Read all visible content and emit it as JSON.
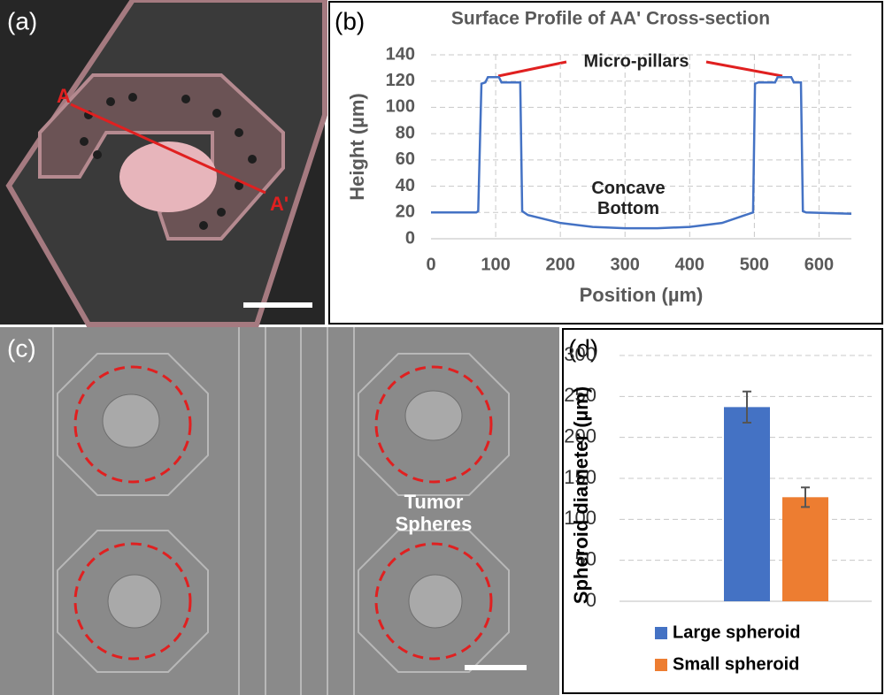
{
  "panels": {
    "a": {
      "label": "(a)",
      "point_a": "A",
      "point_a2": "A'"
    },
    "b": {
      "label": "(b)"
    },
    "c": {
      "label": "(c)",
      "annotation": "Tumor Spheres"
    },
    "d": {
      "label": "(d)"
    }
  },
  "chart_data": [
    {
      "type": "line",
      "title": "Surface Profile of AA' Cross-section",
      "x_label": "Position (µm)",
      "y_label": "Height (µm)",
      "annotations": [
        "Micro-pillars",
        "Concave Bottom"
      ],
      "color": "#4472c4",
      "x": [
        0,
        70,
        73,
        78,
        84,
        88,
        105,
        109,
        112,
        138,
        141,
        150,
        200,
        250,
        300,
        350,
        400,
        450,
        480,
        498,
        501,
        506,
        532,
        536,
        557,
        561,
        572,
        575,
        580,
        650
      ],
      "values": [
        20,
        20,
        21,
        118,
        119,
        123,
        123,
        119,
        119,
        119,
        21,
        18,
        12,
        9,
        8,
        8,
        9,
        12,
        17,
        20,
        118,
        119,
        119,
        123,
        123,
        119,
        119,
        21,
        20,
        19
      ],
      "xlim": [
        0,
        650
      ],
      "ylim": [
        0,
        140
      ],
      "xticks": [
        0,
        100,
        200,
        300,
        400,
        500,
        600
      ],
      "yticks": [
        0,
        20,
        40,
        60,
        80,
        100,
        120,
        140
      ],
      "grid": true
    },
    {
      "type": "bar",
      "y_label": "Spheroid diameter (µm)",
      "series": [
        {
          "name": "Large spheroid",
          "color": "#4472c4",
          "values": [
            237
          ],
          "errors": [
            19
          ]
        },
        {
          "name": "Small spheroid",
          "color": "#ed7d31",
          "values": [
            127
          ],
          "errors": [
            12
          ]
        }
      ],
      "ylim": [
        0,
        300
      ],
      "yticks": [
        0,
        50,
        100,
        150,
        200,
        250,
        300
      ],
      "grid": true
    }
  ]
}
